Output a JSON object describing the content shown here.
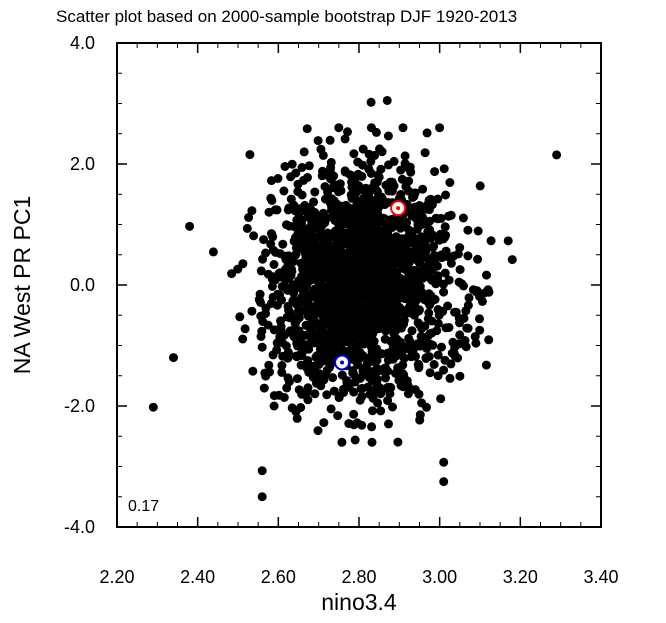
{
  "chart_data": {
    "type": "scatter",
    "title": "Scatter plot based on 2000-sample bootstrap DJF 1920-2013",
    "xlabel": "nino3.4",
    "ylabel": "NA West PR PC1",
    "xlim": [
      2.2,
      3.4
    ],
    "ylim": [
      -4.0,
      4.0
    ],
    "xticks": [
      2.2,
      2.4,
      2.6,
      2.8,
      3.0,
      3.2,
      3.4
    ],
    "yticks": [
      -4.0,
      -2.0,
      0.0,
      2.0,
      4.0
    ],
    "xtick_labels": [
      "2.20",
      "2.40",
      "2.60",
      "2.80",
      "3.00",
      "3.20",
      "3.40"
    ],
    "ytick_labels": [
      "-4.0",
      "-2.0",
      "0.0",
      "2.0",
      "4.0"
    ],
    "annotation": "0.17",
    "grid": false,
    "sample_count": 2000,
    "sample_center": [
      2.8,
      0.0
    ],
    "sample_spread": [
      0.11,
      0.92
    ],
    "marker_color": "#000000",
    "outliers": [
      {
        "x": 3.29,
        "y": 2.15
      },
      {
        "x": 2.29,
        "y": -2.02
      },
      {
        "x": 2.56,
        "y": -3.5
      },
      {
        "x": 2.56,
        "y": -3.07
      },
      {
        "x": 3.01,
        "y": -3.25
      },
      {
        "x": 3.01,
        "y": -2.93
      },
      {
        "x": 2.87,
        "y": 3.05
      },
      {
        "x": 2.83,
        "y": 3.02
      },
      {
        "x": 2.38,
        "y": 0.97
      },
      {
        "x": 2.34,
        "y": -1.2
      },
      {
        "x": 3.18,
        "y": 0.42
      },
      {
        "x": 3.17,
        "y": 0.73
      }
    ],
    "highlights": [
      {
        "x": 2.897,
        "y": 1.27,
        "color": "#ff0000"
      },
      {
        "x": 2.758,
        "y": -1.28,
        "color": "#0000cc"
      }
    ]
  }
}
